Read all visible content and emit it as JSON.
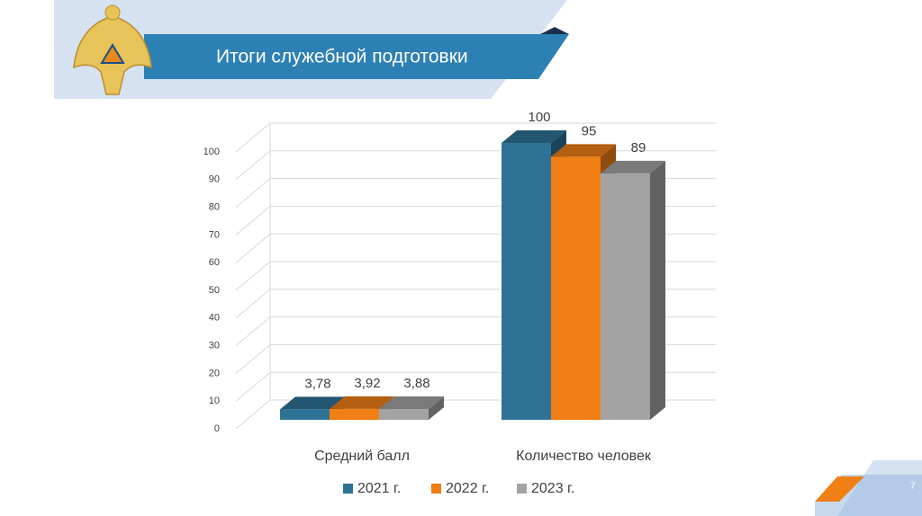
{
  "chart_data": {
    "type": "bar3d",
    "title": "Итоги служебной подготовки",
    "page_number": "7",
    "categories": [
      "Средний балл",
      "Количество человек"
    ],
    "series": [
      {
        "name": "2021 г.",
        "color": "#2e7295",
        "values": [
          3.78,
          100
        ],
        "value_labels": [
          "3,78",
          "100"
        ]
      },
      {
        "name": "2022 г.",
        "color": "#f07f16",
        "values": [
          3.92,
          95
        ],
        "value_labels": [
          "3,92",
          "95"
        ]
      },
      {
        "name": "2023 г.",
        "color": "#a3a3a3",
        "values": [
          3.88,
          89
        ],
        "value_labels": [
          "3,88",
          "89"
        ]
      }
    ],
    "ylim": [
      0,
      100
    ],
    "yticks": [
      0,
      10,
      20,
      30,
      40,
      50,
      60,
      70,
      80,
      90,
      100
    ],
    "grid": true,
    "legend": "bottom"
  }
}
